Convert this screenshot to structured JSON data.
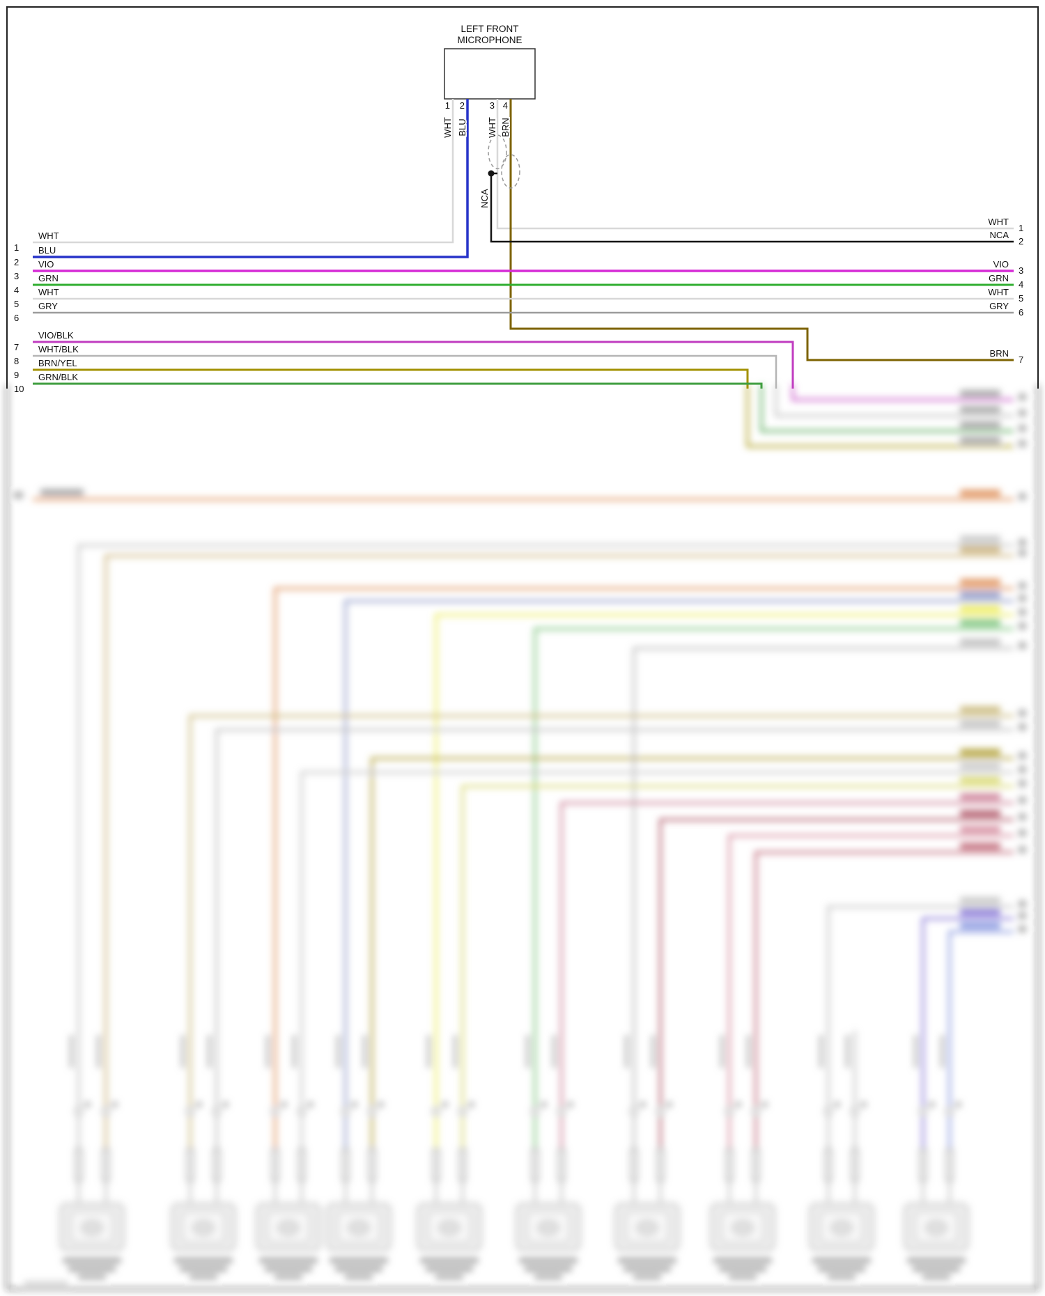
{
  "diagram": {
    "component": {
      "name_line1": "LEFT FRONT",
      "name_line2": "MICROPHONE"
    },
    "mic_connector": {
      "pins": [
        {
          "number": "1",
          "wire": "WHT"
        },
        {
          "number": "2",
          "wire": "BLU"
        },
        {
          "number": "3",
          "wire": "WHT"
        },
        {
          "number": "4",
          "wire": "BRN"
        }
      ],
      "shield_wire": "NCA"
    },
    "left_connector": {
      "rows": [
        {
          "pin": "1",
          "label": "WHT"
        },
        {
          "pin": "2",
          "label": "BLU"
        },
        {
          "pin": "3",
          "label": "VIO"
        },
        {
          "pin": "4",
          "label": "GRN"
        },
        {
          "pin": "5",
          "label": "WHT"
        },
        {
          "pin": "6",
          "label": "GRY"
        },
        {
          "pin": "7",
          "label": "VIO/BLK"
        },
        {
          "pin": "8",
          "label": "WHT/BLK"
        },
        {
          "pin": "9",
          "label": "BRN/YEL"
        },
        {
          "pin": "10",
          "label": "GRN/BLK"
        }
      ]
    },
    "right_connector": {
      "rows": [
        {
          "pin": "1",
          "label": "WHT"
        },
        {
          "pin": "2",
          "label": "NCA"
        },
        {
          "pin": "3",
          "label": "VIO"
        },
        {
          "pin": "4",
          "label": "GRN"
        },
        {
          "pin": "5",
          "label": "WHT"
        },
        {
          "pin": "6",
          "label": "GRY"
        },
        {
          "pin": "7",
          "label": "BRN"
        }
      ]
    },
    "colors": {
      "wht": "#d8d8d8",
      "blu": "#2733c9",
      "vio": "#d62bd6",
      "grn": "#2fae2f",
      "gry": "#9c9c9c",
      "nca": "#141414",
      "brn": "#7d6300",
      "vio_blk": "#c03cc0",
      "wht_blk": "#b5b5b5",
      "brn_yel": "#a39200",
      "grn_blk": "#3f9e3f",
      "org": "#e0925c"
    }
  }
}
